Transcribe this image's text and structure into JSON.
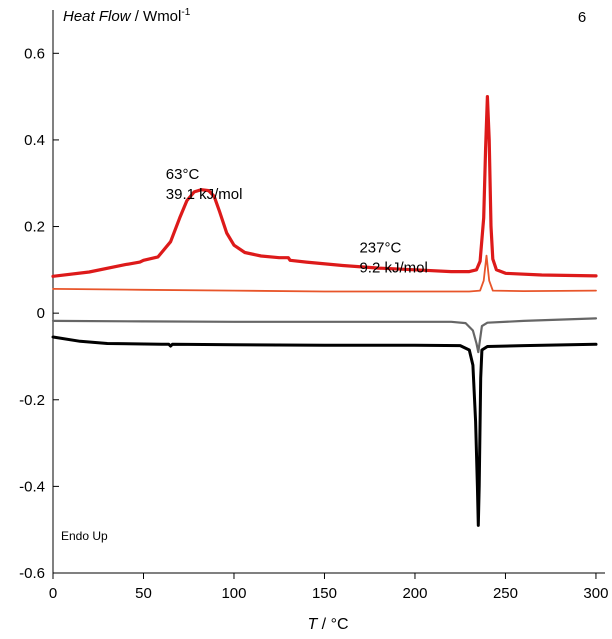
{
  "chart_data": {
    "type": "line",
    "panel_label": "6",
    "ylabel": {
      "italic": "Heat Flow",
      "rest": " / Wmol",
      "sup": "-1"
    },
    "xlabel": {
      "italic": "T",
      "rest": " / °C"
    },
    "corner_note": "Endo Up",
    "xlim": [
      0,
      305
    ],
    "ylim": [
      -0.6,
      0.7
    ],
    "x_ticks": [
      0,
      50,
      100,
      150,
      200,
      250,
      300
    ],
    "x_tick_labels": [
      "0",
      "50",
      "100",
      "150",
      "200",
      "250",
      "300"
    ],
    "y_ticks": [
      -0.6,
      -0.4,
      -0.2,
      0,
      0.2,
      0.4,
      0.6
    ],
    "y_tick_labels": [
      "-0.6",
      "-0.4",
      "-0.2",
      "0",
      "0.2",
      "0.4",
      "0.6"
    ],
    "grid": false,
    "series": [
      {
        "color": "#dd1a1a",
        "width": 3.2,
        "points": [
          [
            0,
            0.085
          ],
          [
            20,
            0.095
          ],
          [
            40,
            0.112
          ],
          [
            48,
            0.118
          ],
          [
            50,
            0.122
          ],
          [
            58,
            0.13
          ],
          [
            65,
            0.165
          ],
          [
            70,
            0.22
          ],
          [
            74,
            0.26
          ],
          [
            78,
            0.28
          ],
          [
            82,
            0.285
          ],
          [
            86,
            0.283
          ],
          [
            89,
            0.27
          ],
          [
            92,
            0.235
          ],
          [
            96,
            0.185
          ],
          [
            100,
            0.157
          ],
          [
            106,
            0.14
          ],
          [
            115,
            0.132
          ],
          [
            125,
            0.128
          ],
          [
            130,
            0.128
          ],
          [
            131,
            0.122
          ],
          [
            140,
            0.118
          ],
          [
            160,
            0.11
          ],
          [
            180,
            0.104
          ],
          [
            200,
            0.1
          ],
          [
            220,
            0.096
          ],
          [
            230,
            0.096
          ],
          [
            234,
            0.1
          ],
          [
            236,
            0.12
          ],
          [
            238,
            0.22
          ],
          [
            239,
            0.38
          ],
          [
            240,
            0.5
          ],
          [
            241,
            0.4
          ],
          [
            242,
            0.2
          ],
          [
            243,
            0.125
          ],
          [
            245,
            0.1
          ],
          [
            250,
            0.092
          ],
          [
            270,
            0.088
          ],
          [
            300,
            0.086
          ]
        ]
      },
      {
        "color": "#e8552a",
        "width": 1.8,
        "points": [
          [
            0,
            0.056
          ],
          [
            50,
            0.054
          ],
          [
            100,
            0.052
          ],
          [
            150,
            0.05
          ],
          [
            200,
            0.05
          ],
          [
            230,
            0.05
          ],
          [
            236,
            0.052
          ],
          [
            238,
            0.075
          ],
          [
            239.5,
            0.133
          ],
          [
            241,
            0.075
          ],
          [
            243,
            0.052
          ],
          [
            260,
            0.051
          ],
          [
            300,
            0.052
          ]
        ]
      },
      {
        "color": "#666666",
        "width": 2.2,
        "points": [
          [
            0,
            -0.018
          ],
          [
            50,
            -0.019
          ],
          [
            100,
            -0.02
          ],
          [
            150,
            -0.02
          ],
          [
            200,
            -0.02
          ],
          [
            220,
            -0.02
          ],
          [
            228,
            -0.023
          ],
          [
            232,
            -0.04
          ],
          [
            234,
            -0.07
          ],
          [
            235,
            -0.09
          ],
          [
            236,
            -0.06
          ],
          [
            237,
            -0.03
          ],
          [
            240,
            -0.022
          ],
          [
            260,
            -0.018
          ],
          [
            300,
            -0.012
          ]
        ]
      },
      {
        "color": "#000000",
        "width": 3.0,
        "points": [
          [
            0,
            -0.055
          ],
          [
            15,
            -0.065
          ],
          [
            30,
            -0.07
          ],
          [
            60,
            -0.072
          ],
          [
            64,
            -0.072
          ],
          [
            65,
            -0.076
          ],
          [
            66,
            -0.072
          ],
          [
            100,
            -0.073
          ],
          [
            150,
            -0.074
          ],
          [
            200,
            -0.074
          ],
          [
            225,
            -0.075
          ],
          [
            230,
            -0.085
          ],
          [
            232,
            -0.12
          ],
          [
            233.5,
            -0.25
          ],
          [
            234.5,
            -0.4
          ],
          [
            235,
            -0.49
          ],
          [
            235.5,
            -0.4
          ],
          [
            236.3,
            -0.15
          ],
          [
            237,
            -0.085
          ],
          [
            240,
            -0.077
          ],
          [
            260,
            -0.075
          ],
          [
            300,
            -0.072
          ]
        ]
      }
    ],
    "annotations": [
      {
        "lines": [
          "63°C",
          "39.1 kJ/mol"
        ],
        "x": 80,
        "y": 0.31
      },
      {
        "lines": [
          "237°C",
          "9.2 kJ/mol"
        ],
        "x": 187,
        "y": 0.14
      }
    ]
  }
}
